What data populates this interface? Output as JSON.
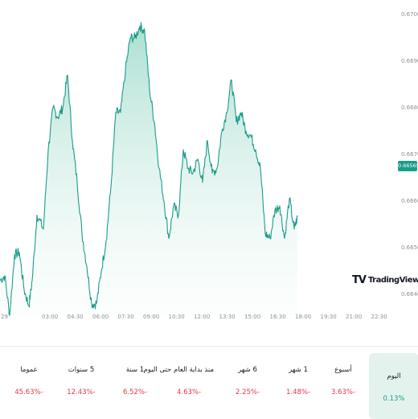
{
  "chart_data": {
    "type": "area",
    "ylim": [
      0.6942,
      0.6703
    ],
    "y_ticks": [
      "0.67000",
      "0.66900",
      "0.66800",
      "0.66700",
      "0.66600",
      "0.66500",
      "0.66400"
    ],
    "x_ticks": [
      "29",
      "03:00",
      "04:30",
      "06:00",
      "07:30",
      "09:00",
      "10:30",
      "12:00",
      "13:30",
      "15:00",
      "16:30",
      "18:00",
      "19:30",
      "21:00",
      "22:30"
    ],
    "x_tick_hours": [
      0,
      3,
      4.5,
      6,
      7.5,
      9,
      10.5,
      12,
      13.5,
      15,
      16.5,
      18,
      19.5,
      21,
      22.5
    ],
    "x_range_hours": [
      0,
      24
    ],
    "last_price": "0.66565",
    "series": [
      {
        "x_hours": [
          0.0,
          0.3,
          0.6,
          0.9,
          1.2,
          1.5,
          1.8,
          2.0,
          2.3,
          2.7,
          3.0,
          3.3,
          3.6,
          3.9,
          4.2,
          4.5,
          4.8,
          5.1,
          5.4,
          5.7,
          6.0,
          6.3,
          6.6,
          6.9,
          7.2,
          7.5,
          7.8,
          8.1,
          8.4,
          8.7,
          9.0,
          9.3,
          9.6,
          9.9,
          10.2,
          10.5,
          10.8,
          11.1,
          11.4,
          11.7,
          12.0,
          12.3,
          12.6,
          12.9,
          13.2,
          13.5,
          13.8,
          14.1,
          14.4,
          14.7,
          15.0,
          15.3,
          15.6,
          15.9,
          16.2,
          16.5,
          16.8,
          17.1,
          17.4,
          17.7,
          18.0,
          18.3,
          18.5
        ],
        "values": [
          0.6643,
          0.6644,
          0.66355,
          0.66485,
          0.6649,
          0.6641,
          0.66375,
          0.6643,
          0.6657,
          0.6654,
          0.6671,
          0.668,
          0.6678,
          0.668,
          0.6687,
          0.6673,
          0.6664,
          0.6653,
          0.6646,
          0.6638,
          0.6638,
          0.6645,
          0.66515,
          0.6663,
          0.6679,
          0.6679,
          0.6688,
          0.6695,
          0.6695,
          0.66975,
          0.66965,
          0.6684,
          0.6677,
          0.6667,
          0.666,
          0.6652,
          0.6659,
          0.6657,
          0.6671,
          0.6667,
          0.6666,
          0.6669,
          0.6664,
          0.6673,
          0.6666,
          0.6667,
          0.6675,
          0.6679,
          0.6686,
          0.6677,
          0.6679,
          0.6675,
          0.6674,
          0.6671,
          0.6667,
          0.6653,
          0.6652,
          0.6658,
          0.6659,
          0.6652,
          0.66605,
          0.6654,
          0.66565
        ]
      }
    ]
  },
  "logo": {
    "mark": "TV",
    "text": "TradingView"
  },
  "periods": [
    {
      "label": "اليوم",
      "value": "0.13%",
      "active": true
    },
    {
      "label": "أسبوع",
      "value": "3.63%-",
      "active": false
    },
    {
      "label": "1 شهر",
      "value": "1.48%-",
      "active": false
    },
    {
      "label": "6 شهر",
      "value": "2.25%-",
      "active": false
    },
    {
      "label": "منذ بداية العام حتى اليوم",
      "value": "4.63%-",
      "active": false
    },
    {
      "label": "1 سنة",
      "value": "6.52%-",
      "active": false
    },
    {
      "label": "5 سنوات",
      "value": "12.43%-",
      "active": false
    },
    {
      "label": "عموما",
      "value": "45.63%-",
      "active": false
    }
  ],
  "colors": {
    "line": "#1a9c89",
    "area_top": "#a6ddd1",
    "negative": "#e23a4a",
    "active_bg": "#e4f2ee"
  }
}
